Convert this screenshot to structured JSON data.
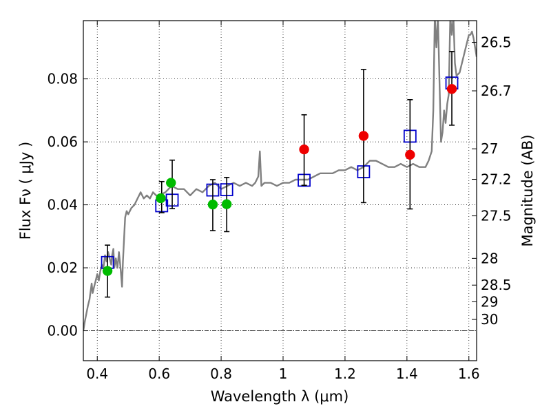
{
  "chart_data": {
    "type": "scatter",
    "xlabel": "Wavelength  λ (μm)",
    "ylabel": "Flux  Fν  ( μJy )",
    "ylabel_right": "Magnitude (AB)",
    "xlim": [
      0.355,
      1.625
    ],
    "ylim": [
      -0.0095,
      0.0985
    ],
    "grid": true,
    "x_ticks": [
      {
        "value": 0.4,
        "label": "0.4"
      },
      {
        "value": 0.6,
        "label": "0.6"
      },
      {
        "value": 0.8,
        "label": "0.8"
      },
      {
        "value": 1.0,
        "label": "1"
      },
      {
        "value": 1.2,
        "label": "1.2"
      },
      {
        "value": 1.4,
        "label": "1.4"
      },
      {
        "value": 1.6,
        "label": "1.6"
      }
    ],
    "y_ticks": [
      {
        "value": 0.0,
        "label": "0.00"
      },
      {
        "value": 0.02,
        "label": "0.02"
      },
      {
        "value": 0.04,
        "label": "0.04"
      },
      {
        "value": 0.06,
        "label": "0.06"
      },
      {
        "value": 0.08,
        "label": "0.08"
      }
    ],
    "right_ticks": [
      {
        "label": "26.5",
        "flux": 0.0916
      },
      {
        "label": "26.7",
        "flux": 0.0762
      },
      {
        "label": "27",
        "flux": 0.0578
      },
      {
        "label": "27.2",
        "flux": 0.0481
      },
      {
        "label": "27.5",
        "flux": 0.0365
      },
      {
        "label": "28",
        "flux": 0.023
      },
      {
        "label": "28.5",
        "flux": 0.0145
      },
      {
        "label": "29",
        "flux": 0.0092
      },
      {
        "label": "30",
        "flux": 0.0036
      }
    ],
    "series": [
      {
        "marker": "line",
        "color": "#808080",
        "x": [
          0.355,
          0.36,
          0.37,
          0.375,
          0.382,
          0.385,
          0.39,
          0.395,
          0.4,
          0.405,
          0.41,
          0.415,
          0.42,
          0.425,
          0.43,
          0.435,
          0.44,
          0.445,
          0.448,
          0.452,
          0.455,
          0.46,
          0.465,
          0.47,
          0.475,
          0.48,
          0.483,
          0.487,
          0.49,
          0.495,
          0.5,
          0.51,
          0.52,
          0.53,
          0.54,
          0.55,
          0.56,
          0.57,
          0.58,
          0.59,
          0.6,
          0.62,
          0.64,
          0.66,
          0.68,
          0.7,
          0.72,
          0.74,
          0.76,
          0.78,
          0.8,
          0.82,
          0.84,
          0.86,
          0.88,
          0.9,
          0.91,
          0.92,
          0.925,
          0.93,
          0.94,
          0.96,
          0.98,
          1.0,
          1.02,
          1.04,
          1.06,
          1.08,
          1.1,
          1.12,
          1.14,
          1.16,
          1.18,
          1.2,
          1.22,
          1.24,
          1.26,
          1.28,
          1.3,
          1.32,
          1.34,
          1.36,
          1.38,
          1.4,
          1.42,
          1.44,
          1.46,
          1.47,
          1.48,
          1.485,
          1.49,
          1.495,
          1.5,
          1.505,
          1.51,
          1.515,
          1.52,
          1.525,
          1.53,
          1.535,
          1.54,
          1.545,
          1.55,
          1.555,
          1.56,
          1.57,
          1.58,
          1.59,
          1.6,
          1.605,
          1.61,
          1.615,
          1.62,
          1.625
        ],
        "y": [
          0.0,
          0.003,
          0.008,
          0.01,
          0.015,
          0.012,
          0.014,
          0.016,
          0.018,
          0.016,
          0.019,
          0.021,
          0.02,
          0.024,
          0.022,
          0.025,
          0.023,
          0.021,
          0.024,
          0.026,
          0.02,
          0.023,
          0.02,
          0.025,
          0.02,
          0.014,
          0.022,
          0.03,
          0.036,
          0.038,
          0.037,
          0.039,
          0.04,
          0.042,
          0.044,
          0.042,
          0.043,
          0.042,
          0.044,
          0.043,
          0.043,
          0.044,
          0.046,
          0.045,
          0.045,
          0.043,
          0.045,
          0.044,
          0.046,
          0.047,
          0.045,
          0.046,
          0.047,
          0.046,
          0.047,
          0.046,
          0.047,
          0.049,
          0.057,
          0.046,
          0.047,
          0.047,
          0.046,
          0.047,
          0.047,
          0.048,
          0.048,
          0.048,
          0.049,
          0.05,
          0.05,
          0.05,
          0.051,
          0.051,
          0.052,
          0.051,
          0.052,
          0.054,
          0.054,
          0.053,
          0.052,
          0.052,
          0.053,
          0.052,
          0.053,
          0.052,
          0.052,
          0.054,
          0.057,
          0.07,
          0.1,
          0.09,
          0.1,
          0.08,
          0.06,
          0.063,
          0.07,
          0.066,
          0.072,
          0.075,
          0.1,
          0.094,
          0.1,
          0.085,
          0.081,
          0.082,
          0.086,
          0.09,
          0.094,
          0.094,
          0.095,
          0.093,
          0.09,
          0.087
        ],
        "clip": true
      },
      {
        "marker": "open-square",
        "color": "#0000cc",
        "x": [
          0.433,
          0.608,
          0.642,
          0.773,
          0.818,
          1.068,
          1.26,
          1.41,
          1.545
        ],
        "y": [
          0.0217,
          0.0397,
          0.0415,
          0.0447,
          0.0448,
          0.0478,
          0.0505,
          0.0618,
          0.0787
        ]
      },
      {
        "marker": "errorbar",
        "color": "#000000",
        "x": [
          0.433,
          0.608,
          0.642,
          0.773,
          0.818,
          1.068,
          1.26,
          1.41,
          1.545
        ],
        "y_low": [
          0.0107,
          0.0375,
          0.0388,
          0.0318,
          0.0315,
          0.0462,
          0.0407,
          0.0387,
          0.0653
        ],
        "y_high": [
          0.0272,
          0.0474,
          0.0542,
          0.048,
          0.0487,
          0.0686,
          0.083,
          0.0734,
          0.0887
        ]
      },
      {
        "marker": "filled-circle",
        "color": "#00bb00",
        "x": [
          0.433,
          0.605,
          0.638,
          0.773,
          0.818
        ],
        "y": [
          0.019,
          0.0421,
          0.047,
          0.0401,
          0.0402
        ]
      },
      {
        "marker": "filled-circle",
        "color": "#ee0000",
        "x": [
          1.068,
          1.26,
          1.41,
          1.545
        ],
        "y": [
          0.0576,
          0.0619,
          0.0559,
          0.0768
        ]
      }
    ]
  }
}
